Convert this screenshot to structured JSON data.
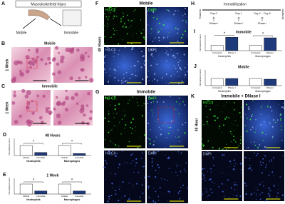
{
  "panels": {
    "A": {
      "label": "A",
      "title": "Musculoskeletal Injury",
      "left": "Mobile",
      "right": "Immobile"
    },
    "B": {
      "label": "B",
      "title": "Mobile",
      "side": "1 Week"
    },
    "C": {
      "label": "C",
      "title": "Immobile",
      "side": "1 Week"
    },
    "D": {
      "label": "D",
      "title": "48 Hours",
      "y_label": "Normalized count",
      "groups": [
        "Neutrophils",
        "Macrophages"
      ],
      "series": [
        {
          "name": "Mobile",
          "color": "#ffffff",
          "values": [
            1,
            1
          ]
        },
        {
          "name": "Immobile",
          "color": "#1f3a7a",
          "values": [
            0.3,
            0.2
          ]
        }
      ],
      "significance": [
        "*",
        "*"
      ]
    },
    "E": {
      "label": "E",
      "title": "1 Week",
      "y_label": "Normalized count",
      "groups": [
        "Neutrophils",
        "Macrophages"
      ],
      "series": [
        {
          "name": "Mobile",
          "color": "#ffffff",
          "values": [
            1,
            1
          ]
        },
        {
          "name": "Immobile",
          "color": "#1f3a7a",
          "values": [
            0.3,
            0.3
          ]
        }
      ],
      "significance": [
        "*",
        "*"
      ]
    },
    "F": {
      "label": "F",
      "title": "Mobile",
      "side": "48 Hours",
      "image_labels": [
        "H3-Cit",
        "DAPI",
        "H3-Cit",
        "DAPI"
      ]
    },
    "G": {
      "label": "G",
      "title": "Immobile",
      "image_labels": [
        "H3-Cit",
        "DAPI",
        "H3-Cit",
        "DAPI"
      ]
    },
    "H": {
      "label": "H",
      "phase": "Immobilization",
      "start": "Trauma",
      "end": "Analysis",
      "days": [
        "Day 0",
        "Day 1",
        "Day 2 ... Day 5"
      ],
      "treatments": [
        "DNase I",
        "DNase I",
        "DNase I"
      ]
    },
    "I": {
      "label": "I",
      "title": "Immobile",
      "y_label": "Normalized count",
      "groups": [
        "Neutrophils",
        "Macrophages"
      ],
      "series": [
        {
          "name": "Untreated",
          "color": "#ffffff",
          "values": [
            1,
            1
          ]
        },
        {
          "name": "DNase I",
          "color": "#1f3a7a",
          "values": [
            2.5,
            2.4
          ]
        }
      ],
      "significance": [
        "*",
        "*"
      ]
    },
    "J": {
      "label": "J",
      "title": "Mobile",
      "y_label": "Normalized count",
      "groups": [
        "Neutrophils",
        "Macrophages"
      ],
      "series": [
        {
          "name": "Untreated",
          "color": "#ffffff",
          "values": [
            1,
            1
          ]
        },
        {
          "name": "DNase I",
          "color": "#1f3a7a",
          "values": [
            1,
            0.9
          ]
        }
      ]
    },
    "K": {
      "label": "K",
      "title": "Immobile + DNase I",
      "side": "48 Hour",
      "image_labels": [
        "H3-Cit",
        "DAPI"
      ]
    }
  }
}
